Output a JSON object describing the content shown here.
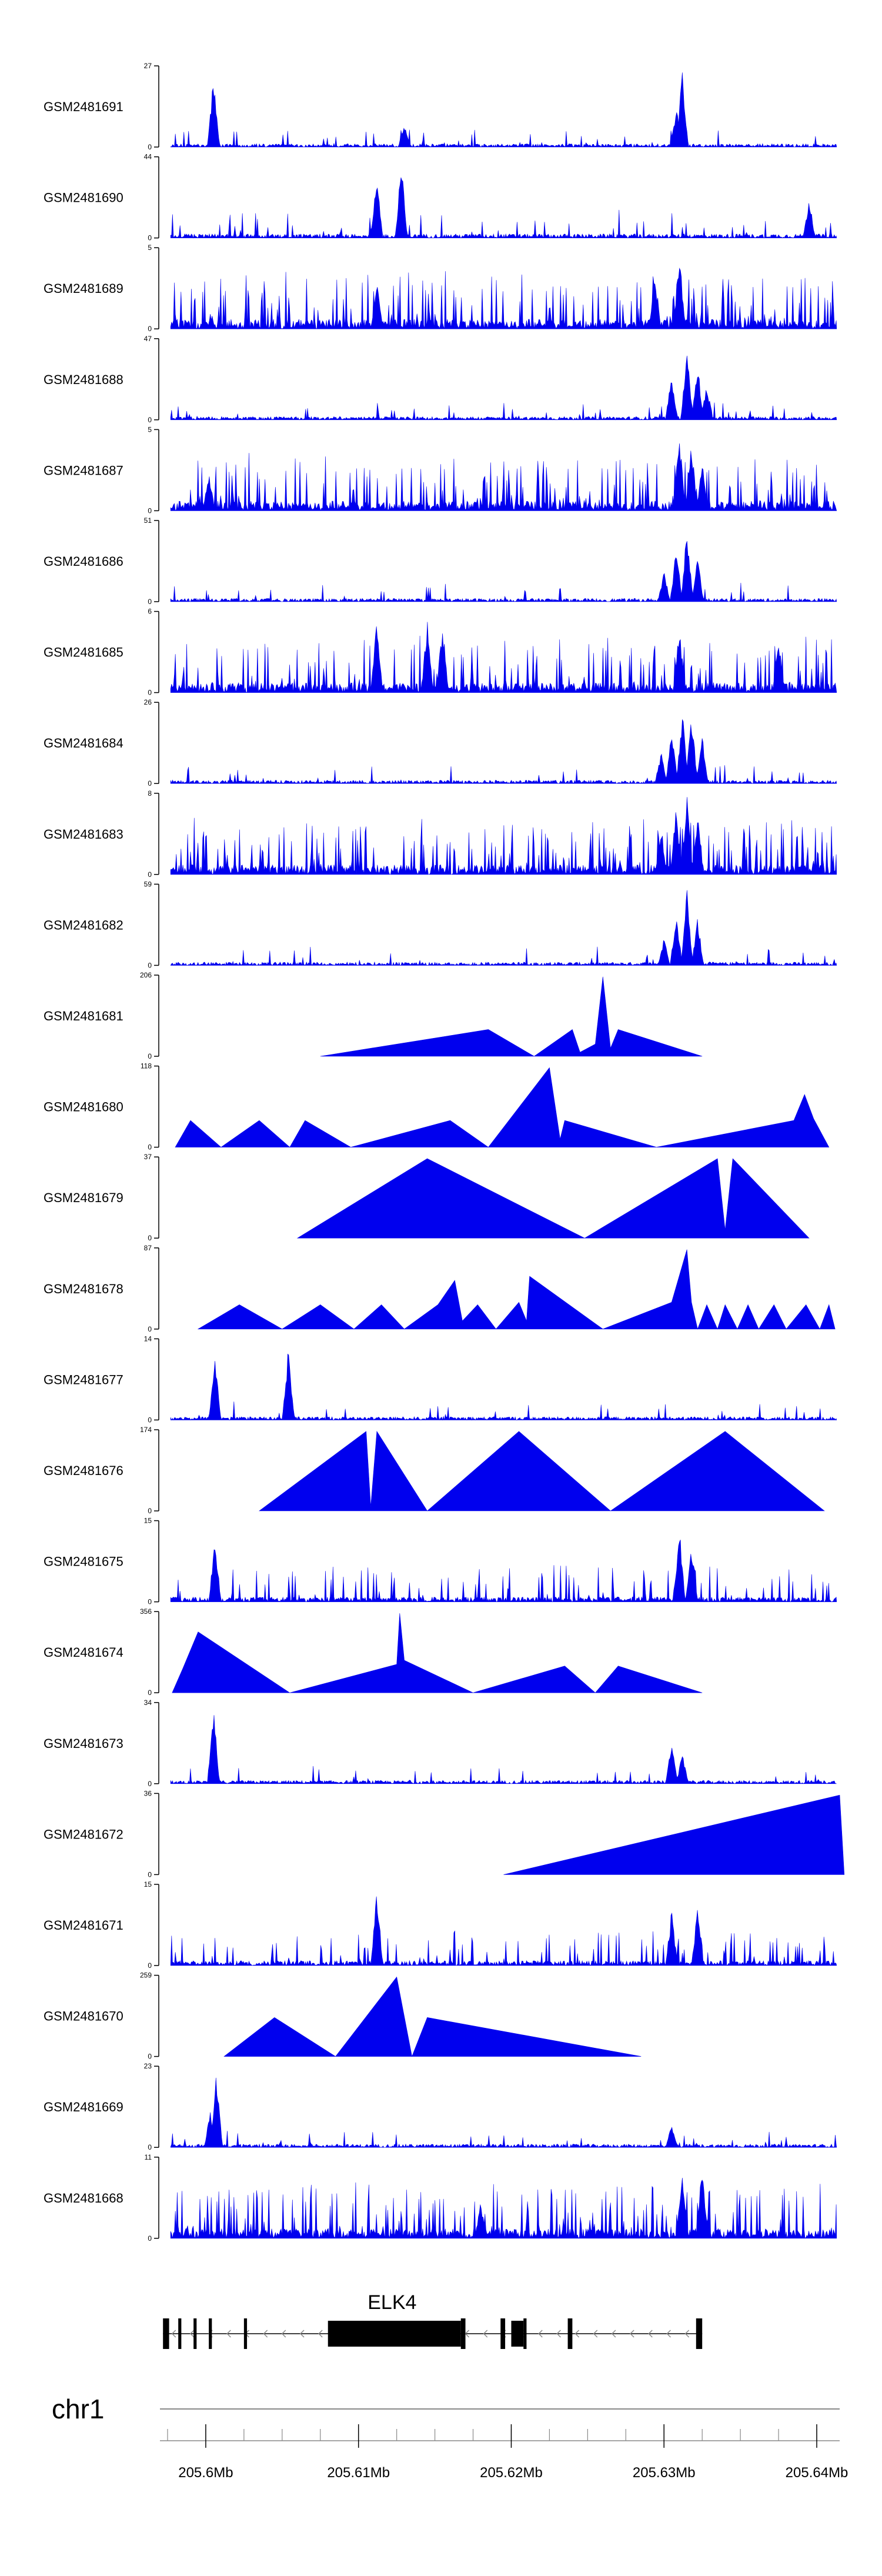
{
  "chart_data": {
    "type": "area",
    "title": "",
    "fill_color": "#0000ee",
    "line_color": "#000000",
    "region": {
      "chrom": "chr1",
      "start": 205.597,
      "end": 205.6415
    },
    "tracks": [
      {
        "name": "GSM2481691",
        "max": 27,
        "min": 0,
        "mode": "dense",
        "seed": 91,
        "peaks": [
          [
            205.6005,
            0.9
          ],
          [
            205.613,
            0.3
          ],
          [
            205.6312,
            0.95
          ],
          [
            205.6308,
            0.5
          ]
        ]
      },
      {
        "name": "GSM2481690",
        "max": 44,
        "min": 0,
        "mode": "mixed",
        "seed": 90,
        "peaks": [
          [
            205.6128,
            0.95
          ],
          [
            205.6112,
            0.8
          ],
          [
            205.6395,
            0.5
          ]
        ]
      },
      {
        "name": "GSM2481689",
        "max": 5,
        "min": 0,
        "mode": "dense_high",
        "seed": 89,
        "peaks": [
          [
            205.631,
            0.98
          ],
          [
            205.6294,
            0.7
          ],
          [
            205.6112,
            0.6
          ]
        ]
      },
      {
        "name": "GSM2481688",
        "max": 47,
        "min": 0,
        "mode": "dense",
        "seed": 88,
        "peaks": [
          [
            205.6315,
            0.95
          ],
          [
            205.6305,
            0.6
          ],
          [
            205.6322,
            0.7
          ],
          [
            205.6328,
            0.45
          ]
        ]
      },
      {
        "name": "GSM2481687",
        "max": 5,
        "min": 0,
        "mode": "dense_high",
        "seed": 87,
        "peaks": [
          [
            205.631,
            0.98
          ],
          [
            205.6318,
            0.85
          ],
          [
            205.6325,
            0.6
          ],
          [
            205.6002,
            0.5
          ]
        ]
      },
      {
        "name": "GSM2481686",
        "max": 51,
        "min": 0,
        "mode": "dense",
        "seed": 86,
        "peaks": [
          [
            205.6315,
            0.95
          ],
          [
            205.6308,
            0.7
          ],
          [
            205.6322,
            0.55
          ],
          [
            205.63,
            0.4
          ]
        ]
      },
      {
        "name": "GSM2481685",
        "max": 6,
        "min": 0,
        "mode": "dense_high",
        "seed": 85,
        "peaks": [
          [
            205.6112,
            0.95
          ],
          [
            205.6145,
            0.95
          ],
          [
            205.6155,
            0.9
          ],
          [
            205.631,
            0.85
          ],
          [
            205.6375,
            0.7
          ]
        ]
      },
      {
        "name": "GSM2481684",
        "max": 26,
        "min": 0,
        "mode": "dense",
        "seed": 84,
        "peaks": [
          [
            205.6312,
            0.95
          ],
          [
            205.6318,
            0.9
          ],
          [
            205.6305,
            0.7
          ],
          [
            205.6325,
            0.6
          ],
          [
            205.6298,
            0.4
          ]
        ]
      },
      {
        "name": "GSM2481683",
        "max": 8,
        "min": 0,
        "mode": "dense_high",
        "seed": 83,
        "peaks": [
          [
            205.6315,
            0.98
          ],
          [
            205.6308,
            0.85
          ],
          [
            205.6322,
            0.75
          ],
          [
            205.6298,
            0.5
          ]
        ]
      },
      {
        "name": "GSM2481682",
        "max": 59,
        "min": 0,
        "mode": "dense",
        "seed": 82,
        "peaks": [
          [
            205.6315,
            0.95
          ],
          [
            205.6308,
            0.7
          ],
          [
            205.6322,
            0.6
          ],
          [
            205.63,
            0.35
          ]
        ]
      },
      {
        "name": "GSM2481681",
        "max": 206,
        "min": 0,
        "mode": "polygon",
        "points": [
          [
            205.6075,
            0
          ],
          [
            205.6185,
            0.33
          ],
          [
            205.6215,
            0
          ],
          [
            205.624,
            0.33
          ],
          [
            205.6245,
            0.05
          ],
          [
            205.6255,
            0.15
          ],
          [
            205.626,
            0.98
          ],
          [
            205.6265,
            0.1
          ],
          [
            205.627,
            0.33
          ],
          [
            205.6325,
            0
          ]
        ]
      },
      {
        "name": "GSM2481680",
        "max": 118,
        "min": 0,
        "mode": "polygon",
        "points": [
          [
            205.598,
            0
          ],
          [
            205.599,
            0.33
          ],
          [
            205.601,
            0
          ],
          [
            205.6035,
            0.33
          ],
          [
            205.6055,
            0
          ],
          [
            205.6065,
            0.33
          ],
          [
            205.6095,
            0
          ],
          [
            205.616,
            0.33
          ],
          [
            205.6185,
            0
          ],
          [
            205.6225,
            0.98
          ],
          [
            205.6232,
            0.1
          ],
          [
            205.6235,
            0.33
          ],
          [
            205.6295,
            0
          ],
          [
            205.6385,
            0.33
          ],
          [
            205.6392,
            0.65
          ],
          [
            205.6398,
            0.35
          ],
          [
            205.6408,
            0
          ]
        ]
      },
      {
        "name": "GSM2481679",
        "max": 37,
        "min": 0,
        "mode": "polygon",
        "points": [
          [
            205.606,
            0
          ],
          [
            205.6145,
            0.98
          ],
          [
            205.6248,
            0
          ],
          [
            205.6335,
            0.98
          ],
          [
            205.634,
            0.1
          ],
          [
            205.6345,
            0.98
          ],
          [
            205.6395,
            0
          ]
        ]
      },
      {
        "name": "GSM2481678",
        "max": 87,
        "min": 0,
        "mode": "polygon",
        "points": [
          [
            205.5995,
            0
          ],
          [
            205.6022,
            0.3
          ],
          [
            205.605,
            0
          ],
          [
            205.6075,
            0.3
          ],
          [
            205.6097,
            0
          ],
          [
            205.6115,
            0.3
          ],
          [
            205.613,
            0
          ],
          [
            205.6152,
            0.3
          ],
          [
            205.6163,
            0.6
          ],
          [
            205.6168,
            0.1
          ],
          [
            205.6178,
            0.3
          ],
          [
            205.619,
            0
          ],
          [
            205.6205,
            0.33
          ],
          [
            205.621,
            0.1
          ],
          [
            205.6212,
            0.65
          ],
          [
            205.626,
            0
          ],
          [
            205.6305,
            0.33
          ],
          [
            205.6315,
            0.98
          ],
          [
            205.6318,
            0.33
          ],
          [
            205.6322,
            0
          ],
          [
            205.6328,
            0.3
          ],
          [
            205.6335,
            0
          ],
          [
            205.634,
            0.3
          ],
          [
            205.6348,
            0
          ],
          [
            205.6355,
            0.3
          ],
          [
            205.6362,
            0
          ],
          [
            205.6372,
            0.3
          ],
          [
            205.638,
            0
          ],
          [
            205.6393,
            0.3
          ],
          [
            205.6402,
            0
          ],
          [
            205.6408,
            0.3
          ],
          [
            205.6412,
            0
          ]
        ]
      },
      {
        "name": "GSM2481677",
        "max": 14,
        "min": 0,
        "mode": "dense",
        "seed": 77,
        "peaks": [
          [
            205.6006,
            0.85
          ],
          [
            205.6054,
            0.9
          ]
        ]
      },
      {
        "name": "GSM2481676",
        "max": 174,
        "min": 0,
        "mode": "polygon",
        "points": [
          [
            205.6035,
            0
          ],
          [
            205.6105,
            0.98
          ],
          [
            205.6108,
            0.05
          ],
          [
            205.6112,
            0.98
          ],
          [
            205.6145,
            0
          ],
          [
            205.6205,
            0.98
          ],
          [
            205.6265,
            0
          ],
          [
            205.634,
            0.98
          ],
          [
            205.6405,
            0
          ]
        ]
      },
      {
        "name": "GSM2481675",
        "max": 15,
        "min": 0,
        "mode": "dense_mid",
        "seed": 75,
        "peaks": [
          [
            205.6006,
            0.8
          ],
          [
            205.631,
            0.95
          ],
          [
            205.6318,
            0.7
          ]
        ]
      },
      {
        "name": "GSM2481674",
        "max": 356,
        "min": 0,
        "mode": "polygon",
        "points": [
          [
            205.5978,
            0
          ],
          [
            205.5985,
            0.3
          ],
          [
            205.5995,
            0.75
          ],
          [
            205.6055,
            0
          ],
          [
            205.6125,
            0.35
          ],
          [
            205.6127,
            0.98
          ],
          [
            205.613,
            0.4
          ],
          [
            205.6175,
            0
          ],
          [
            205.6235,
            0.33
          ],
          [
            205.6255,
            0
          ],
          [
            205.627,
            0.33
          ],
          [
            205.6325,
            0
          ]
        ]
      },
      {
        "name": "GSM2481673",
        "max": 34,
        "min": 0,
        "mode": "dense",
        "seed": 73,
        "peaks": [
          [
            205.6005,
            0.98
          ],
          [
            205.6305,
            0.55
          ],
          [
            205.6312,
            0.4
          ]
        ]
      },
      {
        "name": "GSM2481672",
        "max": 36,
        "min": 0,
        "mode": "polygon",
        "points": [
          [
            205.6195,
            0
          ],
          [
            205.6415,
            0.98
          ],
          [
            205.6418,
            0
          ]
        ]
      },
      {
        "name": "GSM2481671",
        "max": 15,
        "min": 0,
        "mode": "dense_mid",
        "seed": 71,
        "peaks": [
          [
            205.6112,
            0.95
          ],
          [
            205.6305,
            0.7
          ],
          [
            205.6322,
            0.75
          ]
        ]
      },
      {
        "name": "GSM2481670",
        "max": 259,
        "min": 0,
        "mode": "polygon",
        "points": [
          [
            205.6012,
            0
          ],
          [
            205.6045,
            0.48
          ],
          [
            205.6085,
            0
          ],
          [
            205.6125,
            0.98
          ],
          [
            205.6135,
            0
          ],
          [
            205.6145,
            0.48
          ],
          [
            205.6285,
            0
          ]
        ]
      },
      {
        "name": "GSM2481669",
        "max": 23,
        "min": 0,
        "mode": "dense",
        "seed": 69,
        "peaks": [
          [
            205.6007,
            0.95
          ],
          [
            205.6003,
            0.5
          ],
          [
            205.6305,
            0.28
          ]
        ]
      },
      {
        "name": "GSM2481668",
        "max": 11,
        "min": 0,
        "mode": "dense_high",
        "seed": 68,
        "peaks": [
          [
            205.6325,
            0.98
          ],
          [
            205.6312,
            0.95
          ],
          [
            205.618,
            0.45
          ]
        ]
      }
    ],
    "gene": {
      "name": "ELK4",
      "start": 205.5972,
      "end": 205.6325,
      "strand": "-",
      "exons": [
        [
          205.5972,
          205.5976,
          "tall"
        ],
        [
          205.5982,
          205.5984,
          "tall"
        ],
        [
          205.5992,
          205.5994,
          "tall"
        ],
        [
          205.6002,
          205.6004,
          "tall"
        ],
        [
          205.6025,
          205.6027,
          "tall"
        ],
        [
          205.608,
          205.6167,
          "mid"
        ],
        [
          205.6167,
          205.617,
          "tall"
        ],
        [
          205.6193,
          205.6196,
          "tall"
        ],
        [
          205.62,
          205.6208,
          "mid"
        ],
        [
          205.6208,
          205.621,
          "tall"
        ],
        [
          205.6237,
          205.624,
          "tall"
        ],
        [
          205.6321,
          205.6325,
          "tall"
        ]
      ]
    },
    "axis": {
      "chrom_label": "chr1",
      "tick_labels": [
        {
          "value": 205.6,
          "label": "205.6Mb"
        },
        {
          "value": 205.61,
          "label": "205.61Mb"
        },
        {
          "value": 205.62,
          "label": "205.62Mb"
        },
        {
          "value": 205.63,
          "label": "205.63Mb"
        },
        {
          "value": 205.64,
          "label": "205.64Mb"
        }
      ],
      "minor_step": 0.0025
    }
  }
}
